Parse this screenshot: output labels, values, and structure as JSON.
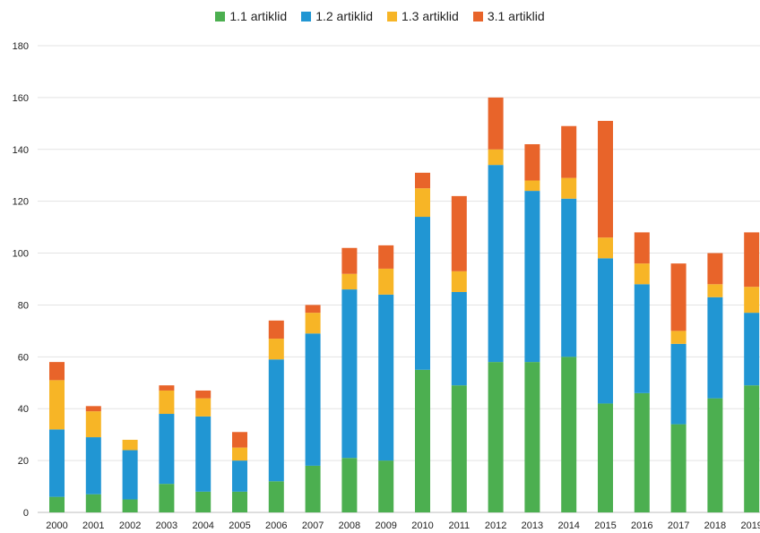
{
  "chart_data": {
    "type": "bar",
    "stacked": true,
    "categories": [
      "2000",
      "2001",
      "2002",
      "2003",
      "2004",
      "2005",
      "2006",
      "2007",
      "2008",
      "2009",
      "2010",
      "2011",
      "2012",
      "2013",
      "2014",
      "2015",
      "2016",
      "2017",
      "2018",
      "2019"
    ],
    "series": [
      {
        "name": "1.1 artiklid",
        "color": "#4CAF50",
        "values": [
          6,
          7,
          5,
          11,
          8,
          8,
          12,
          18,
          21,
          20,
          55,
          49,
          58,
          58,
          60,
          42,
          46,
          34,
          44,
          49
        ]
      },
      {
        "name": "1.2 artiklid",
        "color": "#2196D3",
        "values": [
          26,
          22,
          19,
          27,
          29,
          12,
          47,
          51,
          65,
          64,
          59,
          36,
          76,
          66,
          61,
          56,
          42,
          31,
          39,
          28
        ]
      },
      {
        "name": "1.3 artiklid",
        "color": "#F7B526",
        "values": [
          19,
          10,
          4,
          9,
          7,
          5,
          8,
          8,
          6,
          10,
          11,
          8,
          6,
          4,
          8,
          8,
          8,
          5,
          5,
          10
        ]
      },
      {
        "name": "3.1 artiklid",
        "color": "#E8642A",
        "values": [
          7,
          2,
          0,
          2,
          3,
          6,
          7,
          3,
          10,
          9,
          6,
          29,
          20,
          14,
          20,
          45,
          12,
          26,
          12,
          21
        ]
      }
    ],
    "ylim": [
      0,
      180
    ],
    "yticks": [
      0,
      20,
      40,
      60,
      80,
      100,
      120,
      140,
      160,
      180
    ],
    "grid": true,
    "legend": "top-center"
  }
}
